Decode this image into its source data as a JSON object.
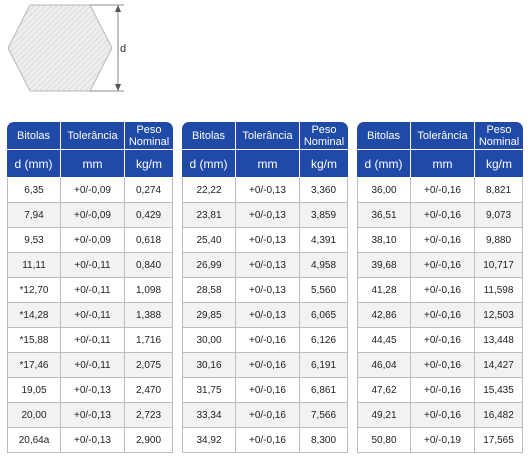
{
  "diagram": {
    "dimension_label": "d"
  },
  "colors": {
    "header_bg": "#1f4aa8",
    "header_text": "#ffffff",
    "row_alt": "#f2f2f2",
    "grid": "#bdbdbd"
  },
  "header": {
    "col1_top": "Bitolas",
    "col2_top": "Tolerância",
    "col3_top_line1": "Peso",
    "col3_top_line2": "Nominal",
    "col1_unit": "d (mm)",
    "col2_unit": "mm",
    "col3_unit": "kg/m"
  },
  "tables": [
    {
      "rows": [
        [
          "6,35",
          "+0/-0,09",
          "0,274"
        ],
        [
          "7,94",
          "+0/-0,09",
          "0,429"
        ],
        [
          "9,53",
          "+0/-0,09",
          "0,618"
        ],
        [
          "11,11",
          "+0/-0,11",
          "0,840"
        ],
        [
          "*12,70",
          "+0/-0,11",
          "1,098"
        ],
        [
          "*14,28",
          "+0/-0,11",
          "1,388"
        ],
        [
          "*15,88",
          "+0/-0,11",
          "1,716"
        ],
        [
          "*17,46",
          "+0/-0,11",
          "2,075"
        ],
        [
          "19,05",
          "+0/-0,13",
          "2,470"
        ],
        [
          "20,00",
          "+0/-0,13",
          "2,723"
        ],
        [
          "20,64a",
          "+0/-0,13",
          "2,900"
        ]
      ]
    },
    {
      "rows": [
        [
          "22,22",
          "+0/-0,13",
          "3,360"
        ],
        [
          "23,81",
          "+0/-0,13",
          "3,859"
        ],
        [
          "25,40",
          "+0/-0,13",
          "4,391"
        ],
        [
          "26,99",
          "+0/-0,13",
          "4,958"
        ],
        [
          "28,58",
          "+0/-0,13",
          "5,560"
        ],
        [
          "29,85",
          "+0/-0,13",
          "6,065"
        ],
        [
          "30,00",
          "+0/-0,16",
          "6,126"
        ],
        [
          "30,16",
          "+0/-0,16",
          "6,191"
        ],
        [
          "31,75",
          "+0/-0,16",
          "6,861"
        ],
        [
          "33,34",
          "+0/-0,16",
          "7,566"
        ],
        [
          "34,92",
          "+0/-0,16",
          "8,300"
        ]
      ]
    },
    {
      "rows": [
        [
          "36,00",
          "+0/-0,16",
          "8,821"
        ],
        [
          "36,51",
          "+0/-0,16",
          "9,073"
        ],
        [
          "38,10",
          "+0/-0,16",
          "9,880"
        ],
        [
          "39,68",
          "+0/-0,16",
          "10,717"
        ],
        [
          "41,28",
          "+0/-0,16",
          "11,598"
        ],
        [
          "42,86",
          "+0/-0,16",
          "12,503"
        ],
        [
          "44,45",
          "+0/-0,16",
          "13,448"
        ],
        [
          "46,04",
          "+0/-0,16",
          "14,427"
        ],
        [
          "47,62",
          "+0/-0,16",
          "15,435"
        ],
        [
          "49,21",
          "+0/-0,16",
          "16,482"
        ],
        [
          "50,80",
          "+0/-0,19",
          "17,565"
        ]
      ]
    }
  ]
}
